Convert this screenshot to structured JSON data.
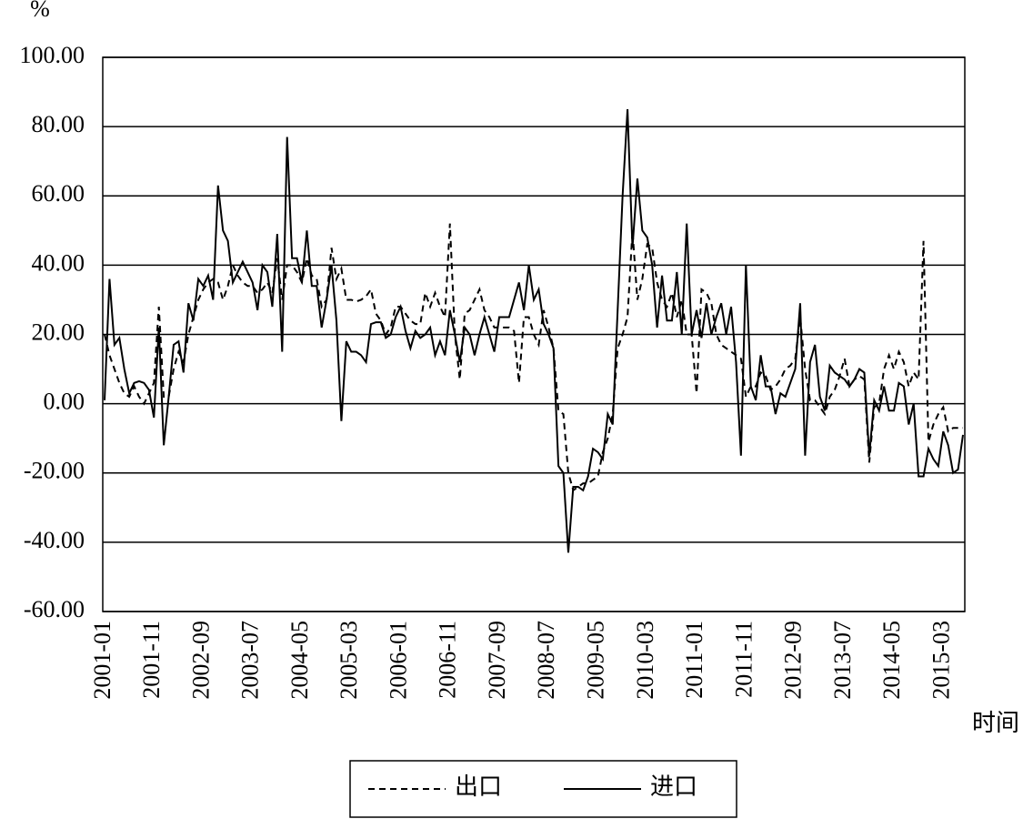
{
  "chart_data": {
    "type": "line",
    "y_axis_label": "%",
    "x_axis_label": "时间",
    "categories": [
      "2001-01",
      null,
      null,
      null,
      null,
      null,
      null,
      null,
      null,
      null,
      "2001-11",
      null,
      null,
      null,
      null,
      null,
      null,
      null,
      null,
      null,
      "2002-09",
      null,
      null,
      null,
      null,
      null,
      null,
      null,
      null,
      null,
      "2003-07",
      null,
      null,
      null,
      null,
      null,
      null,
      null,
      null,
      null,
      "2004-05",
      null,
      null,
      null,
      null,
      null,
      null,
      null,
      null,
      null,
      "2005-03",
      null,
      null,
      null,
      null,
      null,
      null,
      null,
      null,
      null,
      "2006-01",
      null,
      null,
      null,
      null,
      null,
      null,
      null,
      null,
      null,
      "2006-11",
      null,
      null,
      null,
      null,
      null,
      null,
      null,
      null,
      null,
      "2007-09",
      null,
      null,
      null,
      null,
      null,
      null,
      null,
      null,
      null,
      "2008-07",
      null,
      null,
      null,
      null,
      null,
      null,
      null,
      null,
      null,
      "2009-05",
      null,
      null,
      null,
      null,
      null,
      null,
      null,
      null,
      null,
      "2010-03",
      null,
      null,
      null,
      null,
      null,
      null,
      null,
      null,
      null,
      "2011-01",
      null,
      null,
      null,
      null,
      null,
      null,
      null,
      null,
      null,
      "2011-11",
      null,
      null,
      null,
      null,
      null,
      null,
      null,
      null,
      null,
      "2012-09",
      null,
      null,
      null,
      null,
      null,
      null,
      null,
      null,
      null,
      "2013-07",
      null,
      null,
      null,
      null,
      null,
      null,
      null,
      null,
      null,
      "2014-05",
      null,
      null,
      null,
      null,
      null,
      null,
      null,
      null,
      null,
      "2015-03",
      null,
      null,
      null,
      null
    ],
    "series": [
      {
        "name": "出口",
        "color": "#000000",
        "line_style": "dashed",
        "values": [
          20,
          14,
          10,
          6,
          3,
          2,
          5,
          2,
          0,
          3,
          6,
          28,
          2,
          2,
          10,
          15,
          12,
          20,
          25,
          30,
          33,
          35,
          36,
          35,
          30,
          34,
          40,
          37,
          35,
          34,
          34,
          32,
          33,
          35,
          32,
          42,
          30,
          40,
          40,
          38,
          35,
          42,
          37,
          36,
          28,
          30,
          45,
          36,
          39,
          30,
          30,
          29.5,
          30,
          31,
          33,
          26,
          24,
          20,
          22,
          28,
          28,
          26,
          24,
          23,
          23,
          32,
          28,
          32,
          28,
          25,
          52,
          20,
          7,
          26,
          27,
          30,
          33,
          27,
          25,
          22,
          22,
          22,
          22,
          21,
          6,
          25,
          25,
          20,
          17,
          27,
          22,
          16,
          -2,
          -3,
          -20,
          -25,
          -24,
          -23,
          -23,
          -22,
          -21,
          -14,
          -10,
          -3,
          16,
          20,
          25,
          50,
          30,
          36,
          46,
          45,
          35,
          30,
          28,
          32,
          25,
          30,
          20,
          20,
          3,
          33,
          32,
          29,
          20,
          17,
          16,
          15,
          14,
          13,
          2,
          5,
          5,
          9,
          8,
          4,
          5,
          7,
          10,
          11,
          13,
          25,
          10,
          1,
          1,
          -1,
          -3,
          2,
          4,
          8,
          13,
          5,
          7,
          8,
          7,
          -17,
          -1,
          0,
          10,
          14,
          10,
          15,
          12,
          5,
          9,
          7,
          47,
          -11,
          -6,
          -3,
          -1,
          -8,
          -7,
          -7,
          -7
        ]
      },
      {
        "name": "进口",
        "color": "#000000",
        "line_style": "solid",
        "values": [
          1,
          36,
          17,
          19,
          10,
          3,
          6,
          6.5,
          6,
          4,
          -4,
          22,
          -12,
          2,
          17,
          18,
          9,
          29,
          24,
          36,
          34,
          37,
          30,
          63,
          50,
          47,
          35,
          38,
          41,
          38,
          35,
          27,
          40,
          38,
          28,
          49,
          15,
          77,
          42,
          42,
          35,
          50,
          34,
          34,
          22,
          30,
          40,
          24,
          -5,
          18,
          15,
          15,
          14,
          12,
          23,
          23.5,
          23.5,
          19,
          20,
          25,
          28,
          21,
          16,
          21,
          19,
          20,
          22,
          14,
          18,
          14,
          27,
          20,
          12,
          22,
          20,
          14,
          20,
          25,
          20,
          15,
          25,
          25,
          25,
          30,
          35,
          27,
          40,
          30,
          33,
          23,
          20,
          16,
          -18,
          -20,
          -43,
          -24,
          -24,
          -25,
          -21,
          -13,
          -14,
          -16,
          -3,
          -6,
          27,
          60,
          85,
          45,
          65,
          50,
          48,
          40,
          22,
          37,
          24,
          24,
          38,
          20,
          52,
          20,
          27,
          19,
          29,
          20,
          25,
          29,
          20,
          28,
          12,
          -15,
          40,
          5,
          1,
          14,
          5,
          5,
          -3,
          3,
          2,
          6,
          10,
          29,
          -15,
          12,
          17,
          2,
          -2,
          11,
          9,
          8,
          7,
          5,
          7,
          10,
          9,
          -15,
          1,
          -2,
          5,
          -2,
          -2,
          6,
          5,
          -6,
          0,
          -21,
          -21,
          -13,
          -16,
          -18,
          -8,
          -12,
          -20,
          -19,
          -9
        ]
      }
    ],
    "ylim": [
      -60,
      100
    ],
    "yticks": [
      {
        "value": -60,
        "label": "-60.00"
      },
      {
        "value": -40,
        "label": "-40.00"
      },
      {
        "value": -20,
        "label": "-20.00"
      },
      {
        "value": 0,
        "label": "0.00"
      },
      {
        "value": 20,
        "label": "20.00"
      },
      {
        "value": 40,
        "label": "40.00"
      },
      {
        "value": 60,
        "label": "60.00"
      },
      {
        "value": 80,
        "label": "80.00"
      },
      {
        "value": 100,
        "label": "100.00"
      }
    ],
    "grid": true,
    "legend": "bottom"
  }
}
